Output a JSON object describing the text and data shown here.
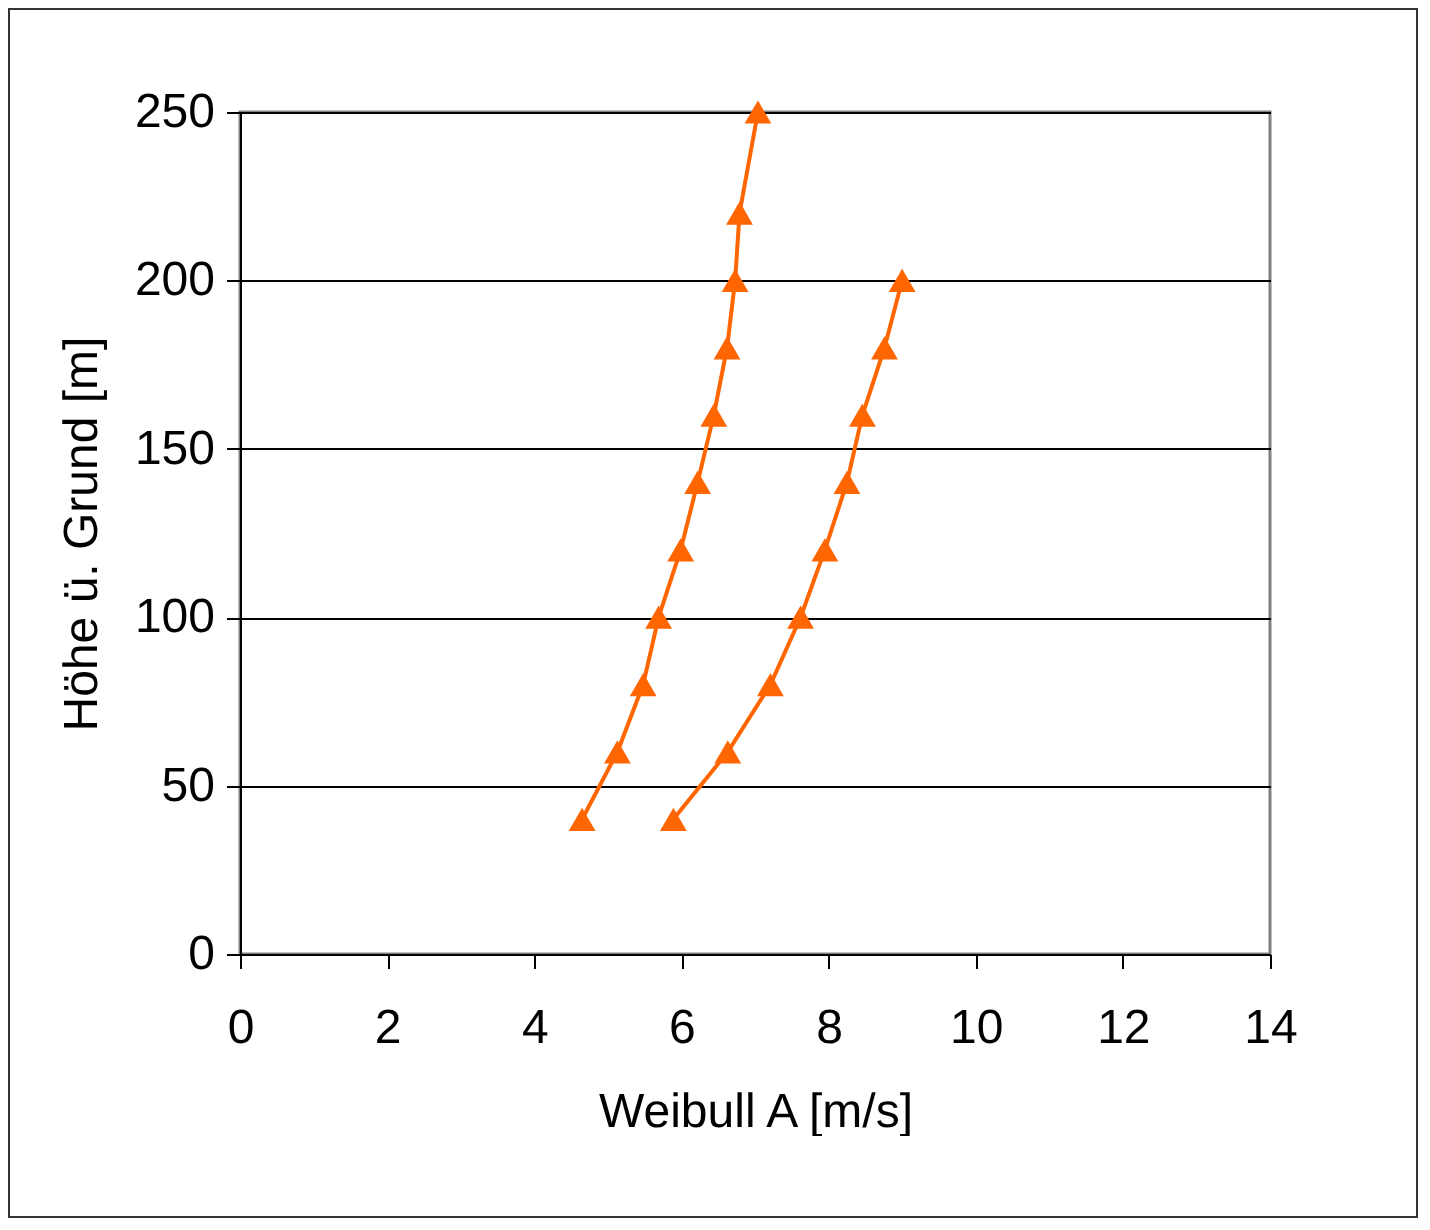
{
  "chart_data": {
    "type": "line",
    "xlabel": "Weibull A [m/s]",
    "ylabel": "Höhe ü. Grund [m]",
    "xlim": [
      0,
      14
    ],
    "xticks": [
      0,
      2,
      4,
      6,
      8,
      10,
      12,
      14
    ],
    "ylim": [
      0,
      250
    ],
    "yticks": [
      0,
      50,
      100,
      150,
      200,
      250
    ],
    "grid": "y",
    "marker": "triangle",
    "line_style": "solid",
    "series": [
      {
        "color": "#ff6600",
        "x": [
          4.65,
          5.13,
          5.48,
          5.69,
          5.99,
          6.22,
          6.44,
          6.62,
          6.73,
          6.79,
          7.04
        ],
        "values": [
          40,
          60,
          80,
          100,
          120,
          140,
          160,
          180,
          200,
          220,
          250
        ]
      },
      {
        "color": "#ff6600",
        "x": [
          5.89,
          6.63,
          7.21,
          7.62,
          7.95,
          8.25,
          8.46,
          8.76,
          9.0
        ],
        "values": [
          40,
          60,
          80,
          100,
          120,
          140,
          160,
          180,
          200
        ]
      }
    ]
  }
}
